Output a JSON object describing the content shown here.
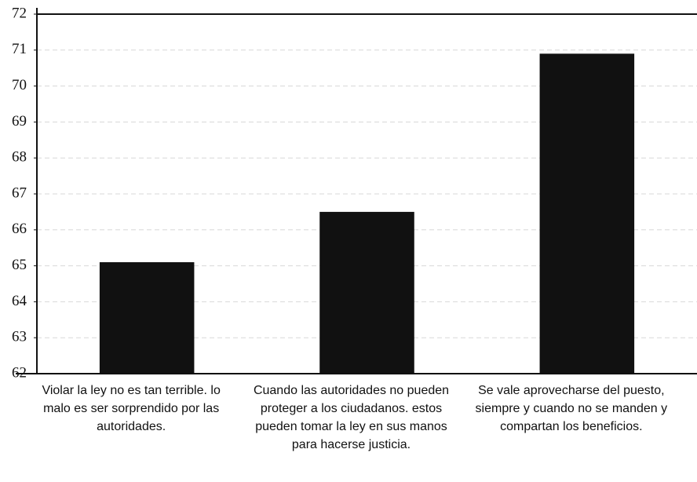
{
  "chart_data": {
    "type": "bar",
    "categories": [
      "Violar la ley no es tan terrible. lo malo es ser sorprendido por las autoridades.",
      "Cuando las autoridades no pueden proteger a los ciudadanos. estos pueden tomar la ley en sus manos para hacerse justicia.",
      "Se vale aprovecharse del puesto, siempre y cuando no se manden y compartan los beneficios."
    ],
    "values": [
      65.1,
      66.5,
      70.9
    ],
    "color": "#111111",
    "ylim": [
      62,
      72
    ],
    "yticks": [
      62,
      63,
      64,
      65,
      66,
      67,
      68,
      69,
      70,
      71,
      72
    ],
    "grid": true
  }
}
